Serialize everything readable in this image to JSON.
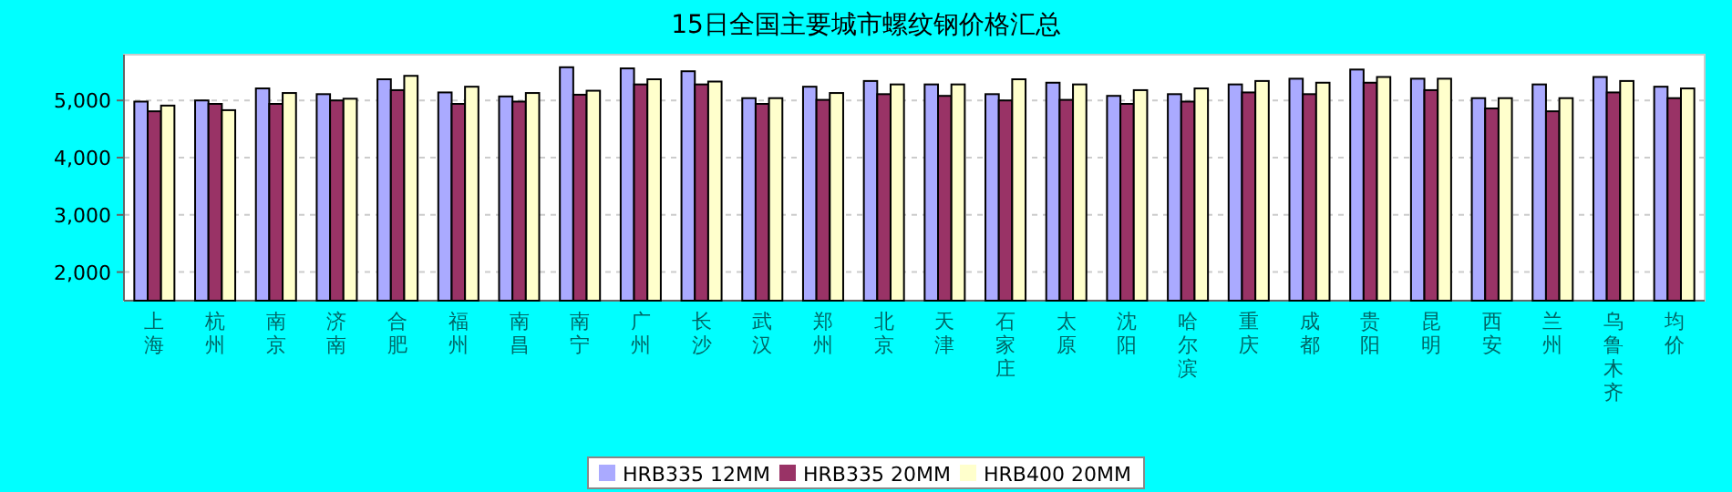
{
  "chart_data": {
    "type": "bar",
    "title": "15日全国主要城市螺纹钢价格汇总",
    "categories": [
      "上海",
      "杭州",
      "南京",
      "济南",
      "合肥",
      "福州",
      "南昌",
      "南宁",
      "广州",
      "长沙",
      "武汉",
      "郑州",
      "北京",
      "天津",
      "石家庄",
      "太原",
      "沈阳",
      "哈尔滨",
      "重庆",
      "成都",
      "贵阳",
      "昆明",
      "西安",
      "兰州",
      "乌鲁木齐",
      "均价"
    ],
    "series": [
      {
        "name": "HRB335 12MM",
        "color": "#aaaaff",
        "values": [
          4980,
          5000,
          5210,
          5110,
          5370,
          5140,
          5070,
          5580,
          5560,
          5510,
          5040,
          5240,
          5340,
          5280,
          5110,
          5310,
          5080,
          5110,
          5280,
          5380,
          5540,
          5380,
          5040,
          5280,
          5410,
          5240
        ]
      },
      {
        "name": "HRB335 20MM",
        "color": "#993366",
        "values": [
          4810,
          4940,
          4940,
          5000,
          5180,
          4940,
          4980,
          5100,
          5280,
          5280,
          4940,
          5010,
          5110,
          5080,
          5000,
          5010,
          4940,
          4980,
          5140,
          5110,
          5310,
          5180,
          4860,
          4810,
          5140,
          5040
        ]
      },
      {
        "name": "HRB400 20MM",
        "color": "#ffffcc",
        "values": [
          4910,
          4830,
          5130,
          5030,
          5430,
          5240,
          5130,
          5170,
          5370,
          5330,
          5040,
          5130,
          5280,
          5280,
          5370,
          5280,
          5180,
          5210,
          5340,
          5310,
          5410,
          5380,
          5040,
          5040,
          5340,
          5210
        ]
      }
    ],
    "ylim": [
      1500,
      5800
    ],
    "yticks": [
      {
        "value": 2000,
        "label": "2,000"
      },
      {
        "value": 3000,
        "label": "3,000"
      },
      {
        "value": 4000,
        "label": "4,000"
      },
      {
        "value": 5000,
        "label": "5,000"
      }
    ],
    "grid": "y",
    "legend": "bottom"
  }
}
